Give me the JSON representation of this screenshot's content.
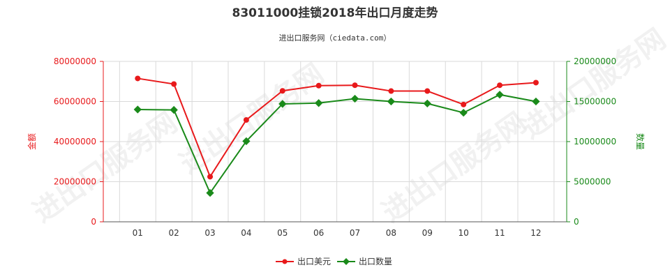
{
  "chart_data": {
    "type": "line",
    "title": "83011000挂锁2018年出口月度走势",
    "subtitle": "进出口服务网（ciedata.com）",
    "watermark": "进出口服务网",
    "categories": [
      "01",
      "02",
      "03",
      "04",
      "05",
      "06",
      "07",
      "08",
      "09",
      "10",
      "11",
      "12"
    ],
    "y_left": {
      "label": "金额",
      "min": 0,
      "max": 80000000,
      "ticks": [
        "0",
        "20000000",
        "40000000",
        "60000000",
        "80000000"
      ],
      "color": "#e8191b"
    },
    "y_right": {
      "label": "数量",
      "min": 0,
      "max": 20000000,
      "ticks": [
        "0",
        "5000000",
        "10000000",
        "15000000",
        "20000000"
      ],
      "color": "#1a8a1a"
    },
    "series": [
      {
        "name": "出口美元",
        "axis": "left",
        "color": "#e8191b",
        "values": [
          71500000,
          68700000,
          22500000,
          50800000,
          65300000,
          67900000,
          68100000,
          65200000,
          65200000,
          58500000,
          68100000,
          69400000
        ]
      },
      {
        "name": "出口数量",
        "axis": "right",
        "color": "#1a8a1a",
        "values": [
          14000000,
          13950000,
          3600000,
          10050000,
          14700000,
          14800000,
          15350000,
          15000000,
          14750000,
          13600000,
          15850000,
          15000000
        ]
      }
    ],
    "grid": true,
    "legend_position": "bottom-center"
  }
}
